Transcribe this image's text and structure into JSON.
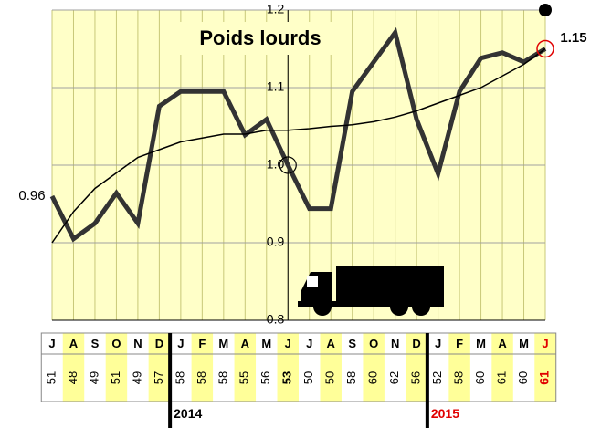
{
  "chart_data": {
    "type": "line",
    "title": "Poids lourds",
    "categories": [
      "J",
      "A",
      "S",
      "O",
      "N",
      "D",
      "J",
      "F",
      "M",
      "A",
      "M",
      "J",
      "J",
      "A",
      "S",
      "O",
      "N",
      "D",
      "J",
      "F",
      "M",
      "A",
      "M",
      "J"
    ],
    "series": [
      {
        "color": "#333333",
        "values": [
          0.96,
          0.905,
          0.925,
          0.964,
          0.925,
          1.076,
          1.095,
          1.095,
          1.095,
          1.039,
          1.059,
          1.0,
          0.944,
          0.944,
          1.095,
          1.133,
          1.171,
          1.059,
          0.989,
          1.095,
          1.138,
          1.145,
          1.133,
          1.15
        ]
      },
      {
        "color": "#000000",
        "values": [
          0.9,
          0.94,
          0.97,
          0.99,
          1.01,
          1.02,
          1.03,
          1.035,
          1.04,
          1.04,
          1.045,
          1.045,
          1.047,
          1.05,
          1.052,
          1.056,
          1.062,
          1.07,
          1.08,
          1.09,
          1.1,
          1.115,
          1.13,
          1.15
        ]
      }
    ],
    "ylim": [
      0.8,
      1.2
    ],
    "yticks": [
      0.8,
      0.9,
      {
        "value": 1,
        "label": "1.0"
      },
      1.1,
      1.2
    ],
    "grid": true,
    "table_values": [
      51,
      48,
      49,
      51,
      49,
      57,
      58,
      58,
      58,
      55,
      56,
      53,
      50,
      50,
      58,
      60,
      62,
      56,
      52,
      58,
      60,
      61,
      60,
      61
    ],
    "years": [
      "2014",
      "2015"
    ]
  }
}
